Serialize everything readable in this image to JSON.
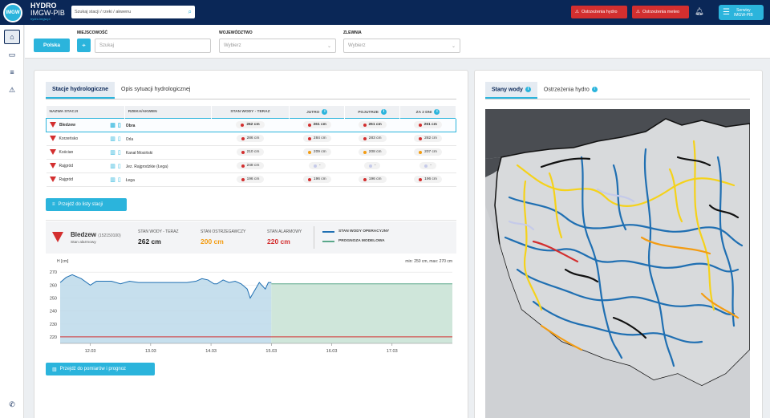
{
  "header": {
    "logo_text": "IMGW",
    "brand_line1": "HYDRO",
    "brand_line2": "IMGW-PIB",
    "brand_line3": "hydro.imgw.pl",
    "search_placeholder": "Szukaj stacji / rzeki / akwenu",
    "btn_hydro_warnings": "Ostrzeżenia hydro",
    "btn_meteo_warnings": "Ostrzeżenia meteo",
    "btn_services_line1": "Serwisy",
    "btn_services_line2": "IMGW-PIB"
  },
  "filters": {
    "location_label": "MIEJSCOWOŚĆ",
    "btn_polska": "Polska",
    "location_placeholder": "Szukaj",
    "voivodeship_label": "WOJEWÓDZTWO",
    "voivodeship_placeholder": "Wybierz",
    "basin_label": "ZLEWNIA",
    "basin_placeholder": "Wybierz"
  },
  "left_tabs": [
    "Stacje hydrologiczne",
    "Opis sytuacji hydrologicznej"
  ],
  "table": {
    "headers": [
      "NAZWA STACJI",
      "RZEKA/AKWEN",
      "STAN WODY - TERAZ",
      "JUTRO",
      "POJUTRZE",
      "ZA 2 DNI"
    ],
    "rows": [
      {
        "name": "Bledzew",
        "river": "Obra",
        "now": "262 cm",
        "d1": "261 cm",
        "d2": "261 cm",
        "d3": "261 cm",
        "c1": "#d32f2f",
        "c2": "#d32f2f",
        "c3": "#d32f2f"
      },
      {
        "name": "Korzeńsko",
        "river": "Orla",
        "now": "286 cm",
        "d1": "284 cm",
        "d2": "283 cm",
        "d3": "282 cm",
        "c1": "#d32f2f",
        "c2": "#d32f2f",
        "c3": "#d32f2f"
      },
      {
        "name": "Kościan",
        "river": "Kanał Mosiński",
        "now": "210 cm",
        "d1": "209 cm",
        "d2": "208 cm",
        "d3": "207 cm",
        "c1": "#f39c12",
        "c2": "#f39c12",
        "c3": "#f39c12"
      },
      {
        "name": "Rajgród",
        "river": "Jez. Rajgrodzkie (Łega)",
        "now": "248 cm",
        "d1": "-",
        "d2": "-",
        "d3": "-",
        "c1": "#c5cae9",
        "c2": "#c5cae9",
        "c3": "#c5cae9"
      },
      {
        "name": "Rajgród",
        "river": "Łega",
        "now": "196 cm",
        "d1": "196 cm",
        "d2": "196 cm",
        "d3": "196 cm",
        "c1": "#d32f2f",
        "c2": "#d32f2f",
        "c3": "#d32f2f"
      }
    ]
  },
  "btn_station_list": "Przejdź do listy stacji",
  "detail": {
    "station": "Bledzew",
    "station_code": "(152150100)",
    "status": "Stan alarmowy",
    "now_label": "STAN WODY - TERAZ",
    "now_value": "262 cm",
    "warn_label": "STAN OSTRZEGAWCZY",
    "warn_value": "200 cm",
    "alarm_label": "STAN ALARMOWY",
    "alarm_value": "220 cm",
    "legend_operational": "STAN WODY OPERACYJNY",
    "legend_forecast": "PROGNOZA MODELOWA"
  },
  "chart_data": {
    "type": "area",
    "ylabel": "H [cm]",
    "minmax_text": "min: 250 cm, max: 270 cm",
    "ylim": [
      215,
      272
    ],
    "yticks": [
      220,
      230,
      240,
      250,
      260,
      270
    ],
    "xticks": [
      "12.03",
      "13.03",
      "14.03",
      "15.03",
      "16.03",
      "17.03"
    ],
    "alarm_level": 220,
    "series": [
      {
        "name": "STAN WODY OPERACYJNY",
        "x_days": [
          0,
          0.1,
          0.2,
          0.35,
          0.5,
          0.6,
          0.75,
          0.85,
          1.0,
          1.15,
          1.3,
          1.5,
          1.7,
          1.9,
          2.1,
          2.25,
          2.35,
          2.45,
          2.55,
          2.6,
          2.7,
          2.8,
          2.9,
          3.0,
          3.1,
          3.15,
          3.2,
          3.3,
          3.4,
          3.45,
          3.5
        ],
        "values": [
          262,
          266,
          268,
          265,
          260,
          263,
          263,
          263,
          261,
          263,
          262,
          262,
          262,
          262,
          262,
          263,
          265,
          264,
          261,
          261,
          264,
          262,
          263,
          261,
          257,
          250,
          254,
          262,
          257,
          262,
          262
        ]
      },
      {
        "name": "PROGNOZA MODELOWA",
        "x_days": [
          3.5,
          6.5
        ],
        "values": [
          261,
          261
        ]
      }
    ]
  },
  "btn_measurements": "Przejdź do pomiarów i prognoz",
  "right_tabs": [
    "Stany wody",
    "Ostrzeżenia hydro"
  ]
}
